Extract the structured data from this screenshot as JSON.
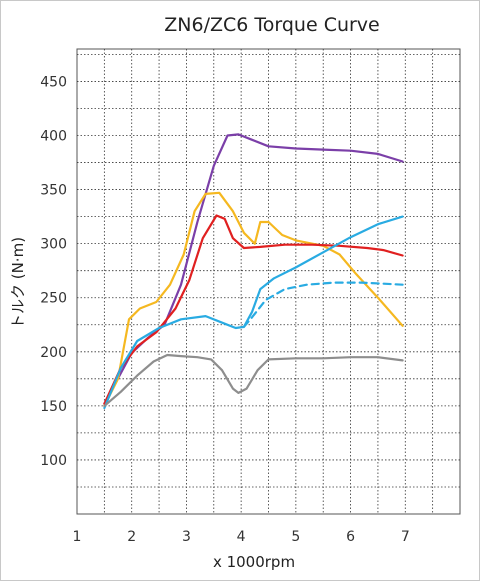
{
  "chart_data": {
    "type": "line",
    "title": "ZN6/ZC6 Torque Curve",
    "xlabel": "x 1000rpm",
    "ylabel": "トルク (N·m)",
    "xlim": [
      1,
      8
    ],
    "ylim": [
      50,
      480
    ],
    "x_ticks": [
      1,
      2,
      3,
      4,
      5,
      6,
      7
    ],
    "y_ticks": [
      100,
      150,
      200,
      250,
      300,
      350,
      400,
      450
    ],
    "x_minor_step": 0.5,
    "y_minor_step": 25,
    "grid": true,
    "legend": "none",
    "series": [
      {
        "color": "#7b3fa8",
        "dash": false,
        "points": [
          [
            1.5,
            152
          ],
          [
            2.0,
            199
          ],
          [
            2.3,
            213
          ],
          [
            2.6,
            225
          ],
          [
            2.9,
            262
          ],
          [
            3.2,
            320
          ],
          [
            3.5,
            372
          ],
          [
            3.75,
            400
          ],
          [
            3.95,
            401
          ],
          [
            4.2,
            396
          ],
          [
            4.5,
            390
          ],
          [
            5.0,
            388
          ],
          [
            5.5,
            387
          ],
          [
            6.0,
            386
          ],
          [
            6.5,
            383
          ],
          [
            6.95,
            376
          ]
        ]
      },
      {
        "color": "#f5b820",
        "dash": false,
        "points": [
          [
            1.5,
            150
          ],
          [
            1.75,
            175
          ],
          [
            1.95,
            230
          ],
          [
            2.15,
            240
          ],
          [
            2.45,
            246
          ],
          [
            2.7,
            262
          ],
          [
            2.95,
            290
          ],
          [
            3.15,
            330
          ],
          [
            3.35,
            346
          ],
          [
            3.6,
            347
          ],
          [
            3.85,
            330
          ],
          [
            4.05,
            310
          ],
          [
            4.25,
            300
          ],
          [
            4.35,
            320
          ],
          [
            4.5,
            320
          ],
          [
            4.75,
            308
          ],
          [
            5.0,
            303
          ],
          [
            5.5,
            298
          ],
          [
            5.8,
            290
          ],
          [
            6.1,
            272
          ],
          [
            6.5,
            250
          ],
          [
            6.95,
            224
          ]
        ]
      },
      {
        "color": "#e02020",
        "dash": false,
        "points": [
          [
            1.5,
            152
          ],
          [
            1.8,
            185
          ],
          [
            2.1,
            205
          ],
          [
            2.45,
            218
          ],
          [
            2.8,
            240
          ],
          [
            3.05,
            266
          ],
          [
            3.3,
            305
          ],
          [
            3.55,
            326
          ],
          [
            3.7,
            323
          ],
          [
            3.85,
            305
          ],
          [
            4.05,
            296
          ],
          [
            4.35,
            297
          ],
          [
            4.8,
            299
          ],
          [
            5.3,
            299
          ],
          [
            5.8,
            298
          ],
          [
            6.3,
            296
          ],
          [
            6.6,
            294
          ],
          [
            6.95,
            289
          ]
        ]
      },
      {
        "color": "#29abe2",
        "dash": false,
        "points": [
          [
            1.5,
            148
          ],
          [
            1.8,
            185
          ],
          [
            2.1,
            210
          ],
          [
            2.5,
            222
          ],
          [
            2.9,
            230
          ],
          [
            3.35,
            233
          ],
          [
            3.7,
            226
          ],
          [
            3.9,
            222
          ],
          [
            4.05,
            223
          ],
          [
            4.2,
            237
          ],
          [
            4.35,
            258
          ],
          [
            4.6,
            268
          ],
          [
            5.0,
            278
          ],
          [
            5.5,
            292
          ],
          [
            6.0,
            306
          ],
          [
            6.5,
            318
          ],
          [
            6.95,
            325
          ]
        ]
      },
      {
        "color": "#29abe2",
        "dash": true,
        "points": [
          [
            4.05,
            223
          ],
          [
            4.2,
            232
          ],
          [
            4.45,
            248
          ],
          [
            4.8,
            258
          ],
          [
            5.2,
            262
          ],
          [
            5.7,
            264
          ],
          [
            6.2,
            264
          ],
          [
            6.6,
            263
          ],
          [
            6.95,
            262
          ]
        ]
      },
      {
        "color": "#8e8e8e",
        "dash": false,
        "points": [
          [
            1.5,
            150
          ],
          [
            1.8,
            163
          ],
          [
            2.1,
            178
          ],
          [
            2.4,
            191
          ],
          [
            2.65,
            197
          ],
          [
            2.9,
            196
          ],
          [
            3.2,
            195
          ],
          [
            3.45,
            193
          ],
          [
            3.65,
            183
          ],
          [
            3.85,
            166
          ],
          [
            3.95,
            162
          ],
          [
            4.1,
            166
          ],
          [
            4.3,
            183
          ],
          [
            4.5,
            193
          ],
          [
            5.0,
            194
          ],
          [
            5.5,
            194
          ],
          [
            6.0,
            195
          ],
          [
            6.5,
            195
          ],
          [
            6.95,
            192
          ]
        ]
      }
    ]
  }
}
